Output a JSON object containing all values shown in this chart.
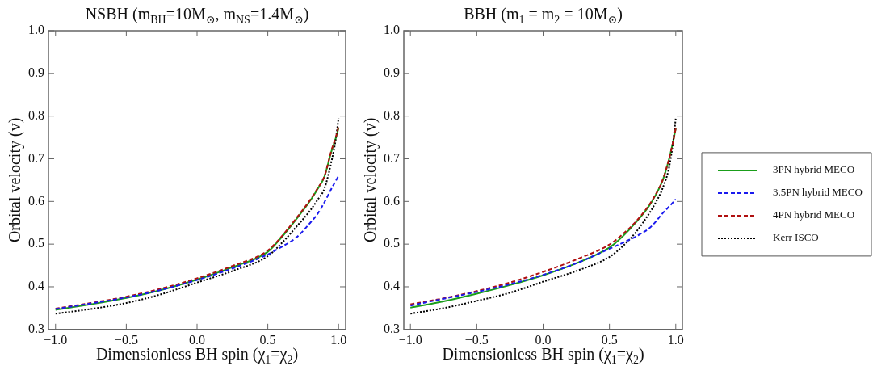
{
  "chart_data": [
    {
      "type": "line",
      "title": "NSBH (m$_{BH}$=10M$_{⊙}$, m$_{NS}$=1.4M$_{⊙}$)",
      "xlabel": "Dimensionless BH spin (χ$_{1}$=χ$_{2}$)",
      "ylabel": "Orbital velocity (v)",
      "x": [
        -1,
        -0.75,
        -0.5,
        -0.25,
        0,
        0.25,
        0.5,
        0.6,
        0.7,
        0.8,
        0.85,
        0.9,
        0.95,
        0.98,
        1
      ],
      "series": [
        {
          "color": "#1a9e1a",
          "line_style": "solid",
          "values": [
            0.346,
            0.359,
            0.374,
            0.393,
            0.417,
            0.446,
            0.482,
            0.517,
            0.558,
            0.602,
            0.628,
            0.658,
            0.718,
            0.748,
            0.772
          ]
        },
        {
          "color": "#1a1aee",
          "line_style": "dashed",
          "values": [
            0.348,
            0.361,
            0.375,
            0.393,
            0.416,
            0.443,
            0.476,
            0.494,
            0.515,
            0.55,
            0.57,
            0.598,
            0.63,
            0.648,
            0.66
          ]
        },
        {
          "color": "#b01010",
          "line_style": "dashed",
          "values": [
            0.349,
            0.362,
            0.377,
            0.396,
            0.42,
            0.449,
            0.485,
            0.519,
            0.56,
            0.604,
            0.63,
            0.659,
            0.72,
            0.75,
            0.775
          ]
        },
        {
          "color": "#000000",
          "line_style": "dotted",
          "values": [
            0.337,
            0.348,
            0.362,
            0.383,
            0.41,
            0.437,
            0.472,
            0.503,
            0.54,
            0.579,
            0.603,
            0.63,
            0.694,
            0.745,
            0.795
          ]
        }
      ],
      "xlim": [
        -1.05,
        1.05
      ],
      "ylim": [
        0.3,
        1.0
      ],
      "xticks": [
        {
          "value": -1,
          "label": "−1.0"
        },
        {
          "value": -0.5,
          "label": "−0.5"
        },
        {
          "value": 0,
          "label": "0.0"
        },
        {
          "value": 0.5,
          "label": "0.5"
        },
        {
          "value": 1,
          "label": "1.0"
        }
      ],
      "yticks": [
        0.3,
        0.4,
        0.5,
        0.6,
        0.7,
        0.8,
        0.9,
        {
          "value": 1,
          "label": "1.0"
        }
      ],
      "marker": "none"
    },
    {
      "type": "line",
      "title": "BBH (m$_{1}$ = m$_{2}$ = 10M$_{⊙}$)",
      "xlabel": "Dimensionless BH spin (χ$_{1}$=χ$_{2}$)",
      "ylabel": "Orbital velocity (v)",
      "x": [
        -1,
        -0.75,
        -0.5,
        -0.25,
        0,
        0.25,
        0.5,
        0.6,
        0.7,
        0.8,
        0.85,
        0.9,
        0.95,
        0.98,
        1
      ],
      "series": [
        {
          "name": "3PN hybrid MECO",
          "color": "#1a9e1a",
          "line_style": "solid",
          "values": [
            0.351,
            0.366,
            0.384,
            0.404,
            0.427,
            0.455,
            0.492,
            0.518,
            0.551,
            0.59,
            0.616,
            0.648,
            0.7,
            0.74,
            0.772
          ]
        },
        {
          "name": "3.5PN hybrid MECO",
          "color": "#1a1aee",
          "line_style": "dashed",
          "values": [
            0.356,
            0.372,
            0.388,
            0.406,
            0.428,
            0.455,
            0.489,
            0.503,
            0.518,
            0.537,
            0.553,
            0.572,
            0.588,
            0.598,
            0.605
          ]
        },
        {
          "name": "4PN hybrid MECO",
          "color": "#b01010",
          "line_style": "dashed",
          "values": [
            0.359,
            0.373,
            0.39,
            0.41,
            0.435,
            0.464,
            0.499,
            0.523,
            0.553,
            0.592,
            0.617,
            0.649,
            0.7,
            0.74,
            0.771
          ]
        },
        {
          "name": "Kerr ISCO",
          "color": "#000000",
          "line_style": "dotted",
          "values": [
            0.337,
            0.35,
            0.367,
            0.386,
            0.412,
            0.437,
            0.47,
            0.495,
            0.528,
            0.572,
            0.598,
            0.63,
            0.68,
            0.74,
            0.795
          ]
        }
      ],
      "xlim": [
        -1.05,
        1.05
      ],
      "ylim": [
        0.3,
        1.0
      ],
      "xticks": [
        {
          "value": -1,
          "label": "−1.0"
        },
        {
          "value": -0.5,
          "label": "−0.5"
        },
        {
          "value": 0,
          "label": "0.0"
        },
        {
          "value": 0.5,
          "label": "0.5"
        },
        {
          "value": 1,
          "label": "1.0"
        }
      ],
      "yticks": [
        0.3,
        0.4,
        0.5,
        0.6,
        0.7,
        0.8,
        0.9,
        {
          "value": 1,
          "label": "1.0"
        }
      ],
      "marker": "none",
      "legend": "right"
    }
  ]
}
